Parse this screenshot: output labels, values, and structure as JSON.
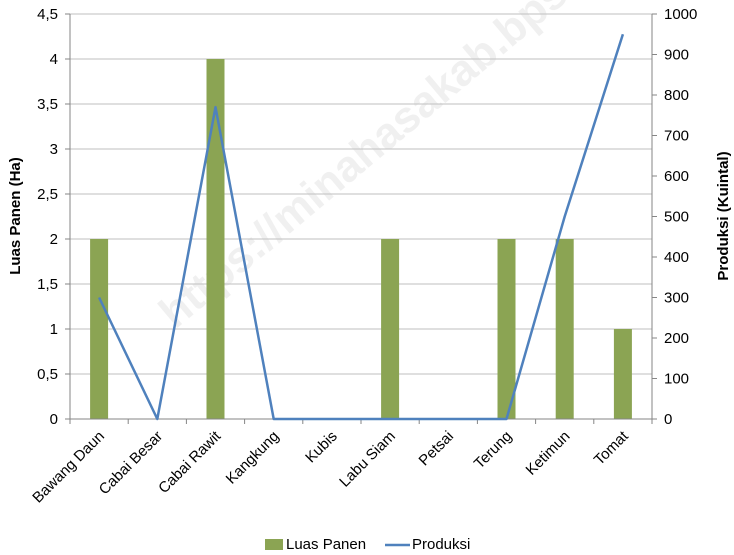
{
  "watermark": "https://minahasakab.bps.go.id",
  "chart_data": {
    "type": "bar",
    "categories": [
      "Bawang Daun",
      "Cabai Besar",
      "Cabai Rawit",
      "Kangkung",
      "Kubis",
      "Labu Siam",
      "Petsai",
      "Terung",
      "Ketimun",
      "Tomat"
    ],
    "series": [
      {
        "name": "Luas Panen",
        "type": "bar",
        "axis": "left",
        "color": "#8BA453",
        "values": [
          2,
          0,
          4,
          0,
          0,
          2,
          0,
          2,
          2,
          1
        ]
      },
      {
        "name": "Produksi",
        "type": "line",
        "axis": "right",
        "color": "#4F81BD",
        "values": [
          300,
          0,
          770,
          0,
          0,
          0,
          0,
          0,
          500,
          950
        ]
      }
    ],
    "ylabel": "Luas Panen (Ha)",
    "y2label": "Produksi (Kuintal)",
    "ylim": [
      0,
      4.5
    ],
    "y2lim": [
      0,
      1000
    ],
    "yticks": [
      "0",
      "0,5",
      "1",
      "1,5",
      "2",
      "2,5",
      "3",
      "3,5",
      "4",
      "4,5"
    ],
    "y2ticks": [
      "0",
      "100",
      "200",
      "300",
      "400",
      "500",
      "600",
      "700",
      "800",
      "900",
      "1000"
    ],
    "grid": true,
    "legend": "bottom"
  }
}
